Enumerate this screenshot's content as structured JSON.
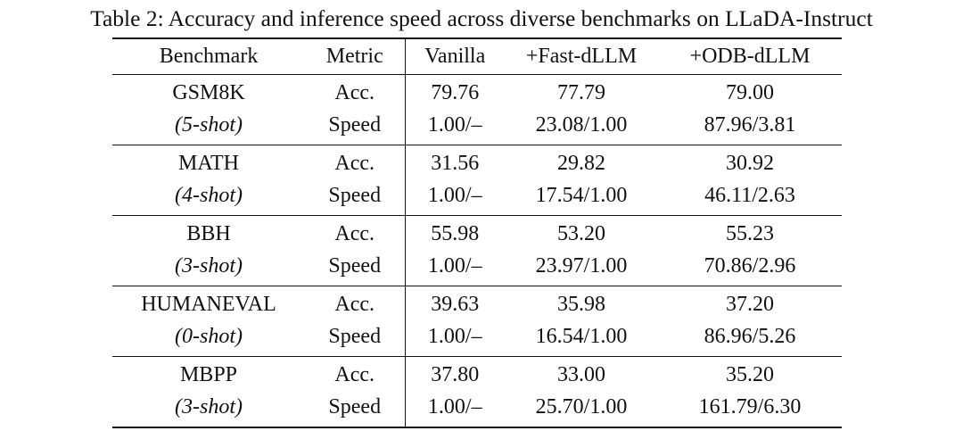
{
  "caption": "Table 2: Accuracy and inference speed across diverse benchmarks on LLaDA-Instruct",
  "headers": {
    "benchmark": "Benchmark",
    "metric": "Metric",
    "vanilla": "Vanilla",
    "fast": "+Fast-dLLM",
    "odb": "+ODB-dLLM"
  },
  "rows": [
    {
      "name": "GSM8K",
      "shot": "5-shot",
      "acc": {
        "label": "Acc.",
        "vanilla": "79.76",
        "fast": "77.79",
        "odb": "79.00"
      },
      "speed": {
        "label": "Speed",
        "vanilla": "1.00/–",
        "fast": "23.08/1.00",
        "odb": "87.96/3.81"
      }
    },
    {
      "name": "MATH",
      "shot": "4-shot",
      "acc": {
        "label": "Acc.",
        "vanilla": "31.56",
        "fast": "29.82",
        "odb": "30.92"
      },
      "speed": {
        "label": "Speed",
        "vanilla": "1.00/–",
        "fast": "17.54/1.00",
        "odb": "46.11/2.63"
      }
    },
    {
      "name": "BBH",
      "shot": "3-shot",
      "acc": {
        "label": "Acc.",
        "vanilla": "55.98",
        "fast": "53.20",
        "odb": "55.23"
      },
      "speed": {
        "label": "Speed",
        "vanilla": "1.00/–",
        "fast": "23.97/1.00",
        "odb": "70.86/2.96"
      }
    },
    {
      "name": "HUMANEVAL",
      "shot": "0-shot",
      "acc": {
        "label": "Acc.",
        "vanilla": "39.63",
        "fast": "35.98",
        "odb": "37.20"
      },
      "speed": {
        "label": "Speed",
        "vanilla": "1.00/–",
        "fast": "16.54/1.00",
        "odb": "86.96/5.26"
      }
    },
    {
      "name": "MBPP",
      "shot": "3-shot",
      "acc": {
        "label": "Acc.",
        "vanilla": "37.80",
        "fast": "33.00",
        "odb": "35.20"
      },
      "speed": {
        "label": "Speed",
        "vanilla": "1.00/–",
        "fast": "25.70/1.00",
        "odb": "161.79/6.30"
      }
    }
  ]
}
